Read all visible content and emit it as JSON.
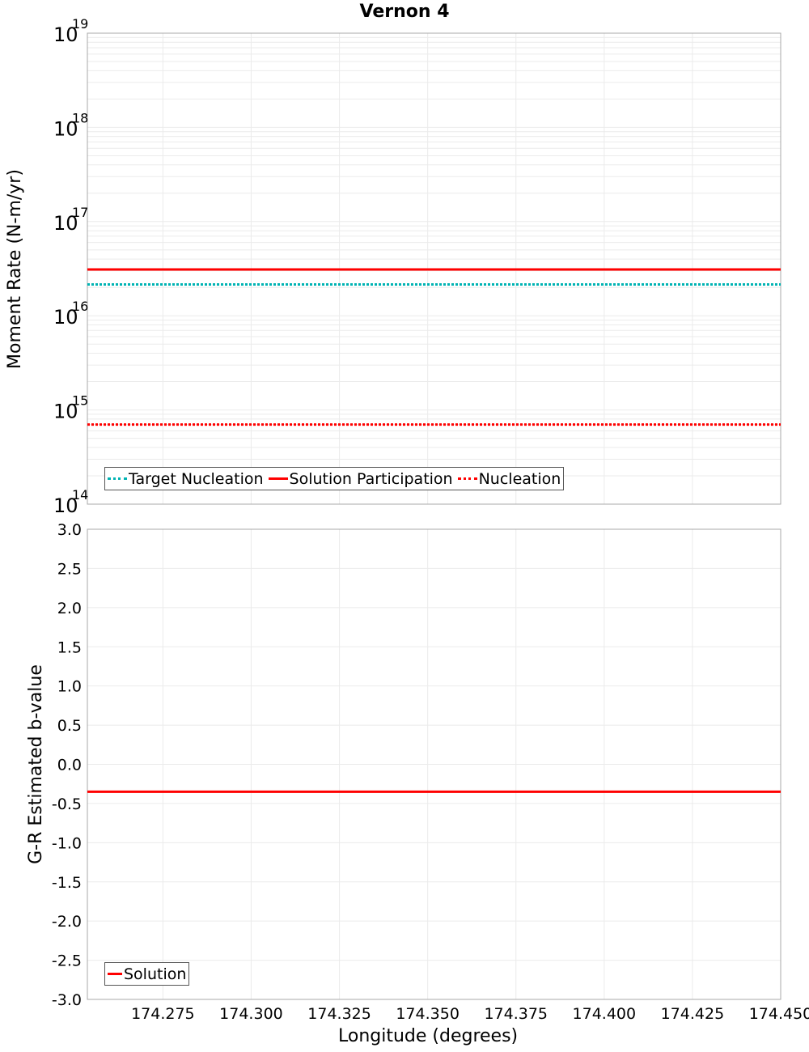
{
  "title": "Vernon 4",
  "chart_data": [
    {
      "type": "line",
      "title": "Vernon 4",
      "xlabel": "Longitude (degrees)",
      "ylabel": "Moment Rate (N-m/yr)",
      "yscale": "log",
      "ylim": [
        100000000000000.0,
        1e+19
      ],
      "xlim": [
        174.2536,
        174.45
      ],
      "ytick_labels": [
        "10^14",
        "10^15",
        "10^16",
        "10^17",
        "10^18",
        "10^19"
      ],
      "grid": true,
      "legend_position": "lower left",
      "x": [
        174.2536,
        174.3518,
        174.45
      ],
      "series": [
        {
          "name": "Target Nucleation",
          "color": "#00b3b3",
          "style": "dotted",
          "values": [
            2.15e+16,
            2.15e+16,
            2.15e+16
          ]
        },
        {
          "name": "Solution Participation",
          "color": "#ff0000",
          "style": "solid",
          "values": [
            3.1e+16,
            3.1e+16,
            3.1e+16
          ]
        },
        {
          "name": "Nucleation",
          "color": "#ff0000",
          "style": "dotted",
          "values": [
            700000000000000.0,
            700000000000000.0,
            700000000000000.0
          ]
        }
      ]
    },
    {
      "type": "line",
      "title": "",
      "xlabel": "Longitude (degrees)",
      "ylabel": "G-R Estimated b-value",
      "ylim": [
        -3.0,
        3.0
      ],
      "xlim": [
        174.2536,
        174.45
      ],
      "ytick_labels": [
        "3.0",
        "2.5",
        "2.0",
        "1.5",
        "1.0",
        "0.5",
        "0.0",
        "-0.5",
        "-1.0",
        "-1.5",
        "-2.0",
        "-2.5",
        "-3.0"
      ],
      "xtick_labels": [
        "174.275",
        "174.300",
        "174.325",
        "174.350",
        "174.375",
        "174.400",
        "174.425",
        "174.450"
      ],
      "grid": true,
      "legend_position": "lower left",
      "x": [
        174.2536,
        174.3518,
        174.45
      ],
      "series": [
        {
          "name": "Solution",
          "color": "#ff0000",
          "style": "solid",
          "values": [
            -0.35,
            -0.35,
            -0.35
          ]
        }
      ]
    }
  ],
  "top_plot": {
    "ylabel": "Moment Rate (N-m/yr)",
    "legend": [
      "Target Nucleation",
      "Solution Participation",
      "Nucleation"
    ]
  },
  "bottom_plot": {
    "ylabel": "G-R Estimated b-value",
    "xlabel": "Longitude (degrees)",
    "legend": [
      "Solution"
    ]
  }
}
